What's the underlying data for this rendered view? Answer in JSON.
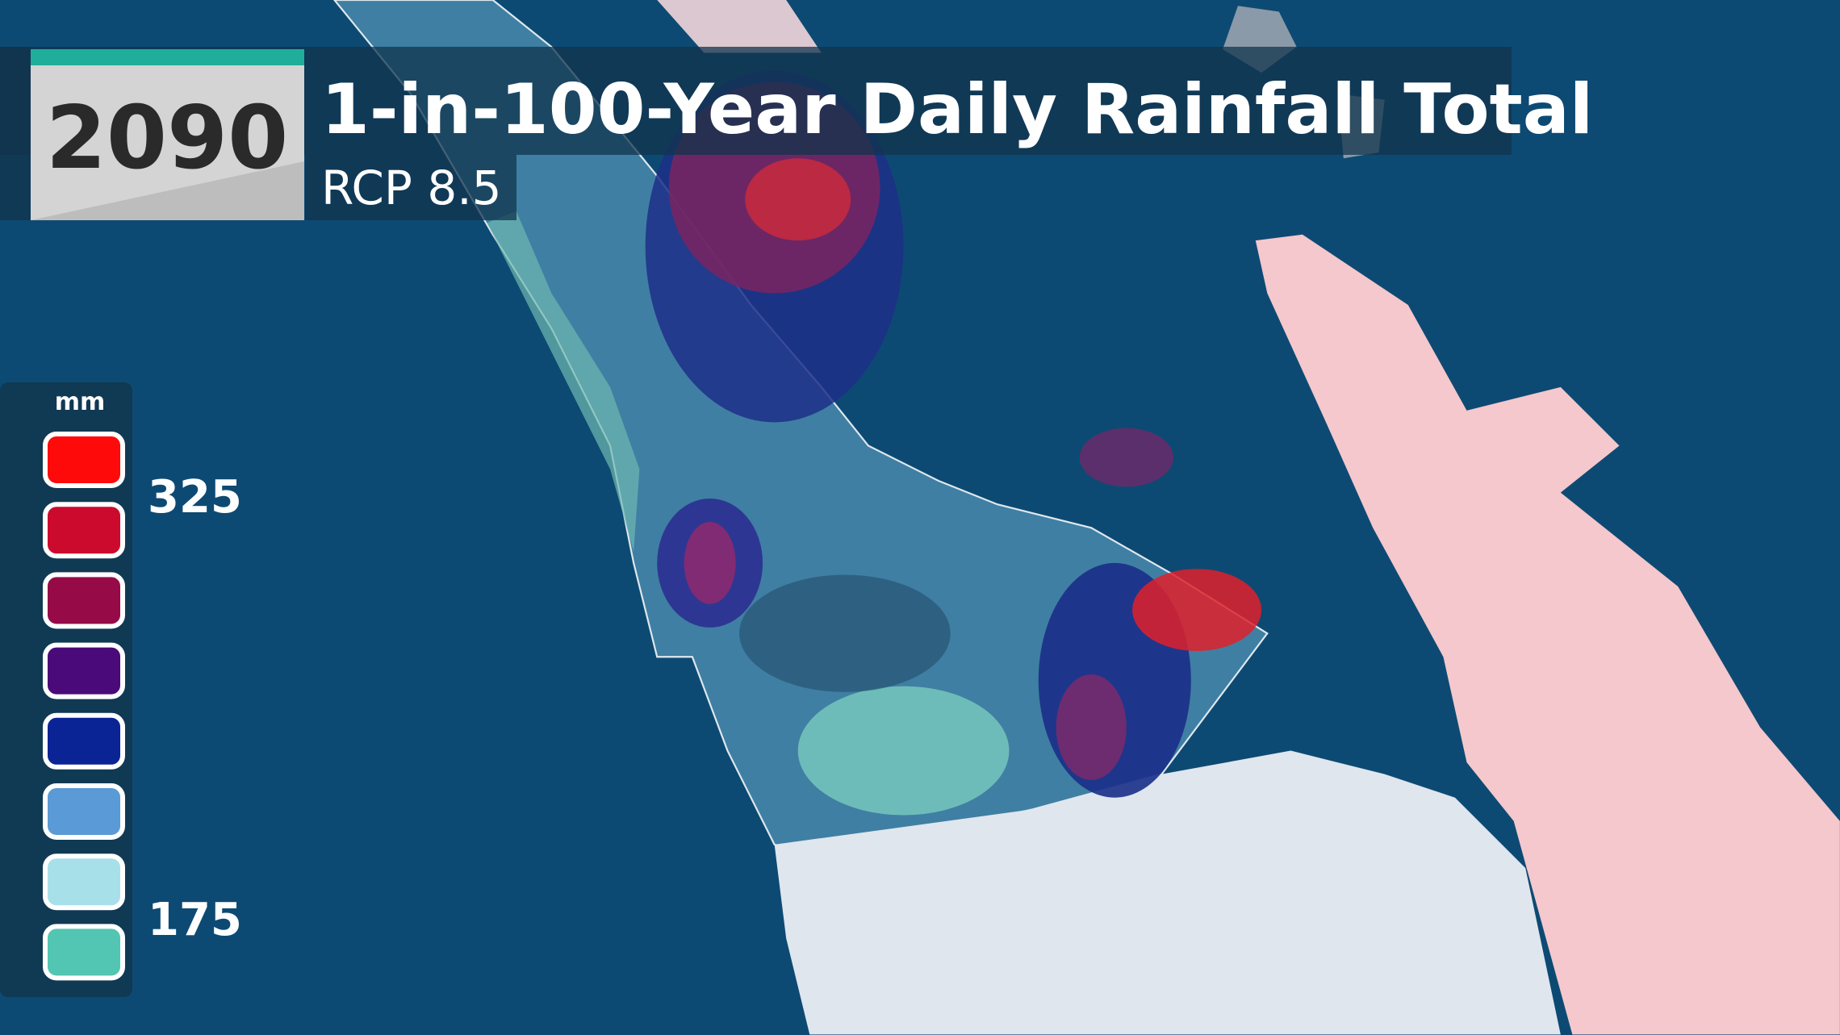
{
  "header": {
    "year": "2090",
    "title": "1-in-100-Year Daily Rainfall Total",
    "subtitle": "RCP 8.5"
  },
  "legend": {
    "unit": "mm",
    "labels": [
      "325",
      "175"
    ],
    "colors": [
      "#ff0a0a",
      "#cc0a2e",
      "#960a48",
      "#4a0a7a",
      "#0a2496",
      "#5a9ad6",
      "#a8e0ea",
      "#52c6b2"
    ]
  }
}
